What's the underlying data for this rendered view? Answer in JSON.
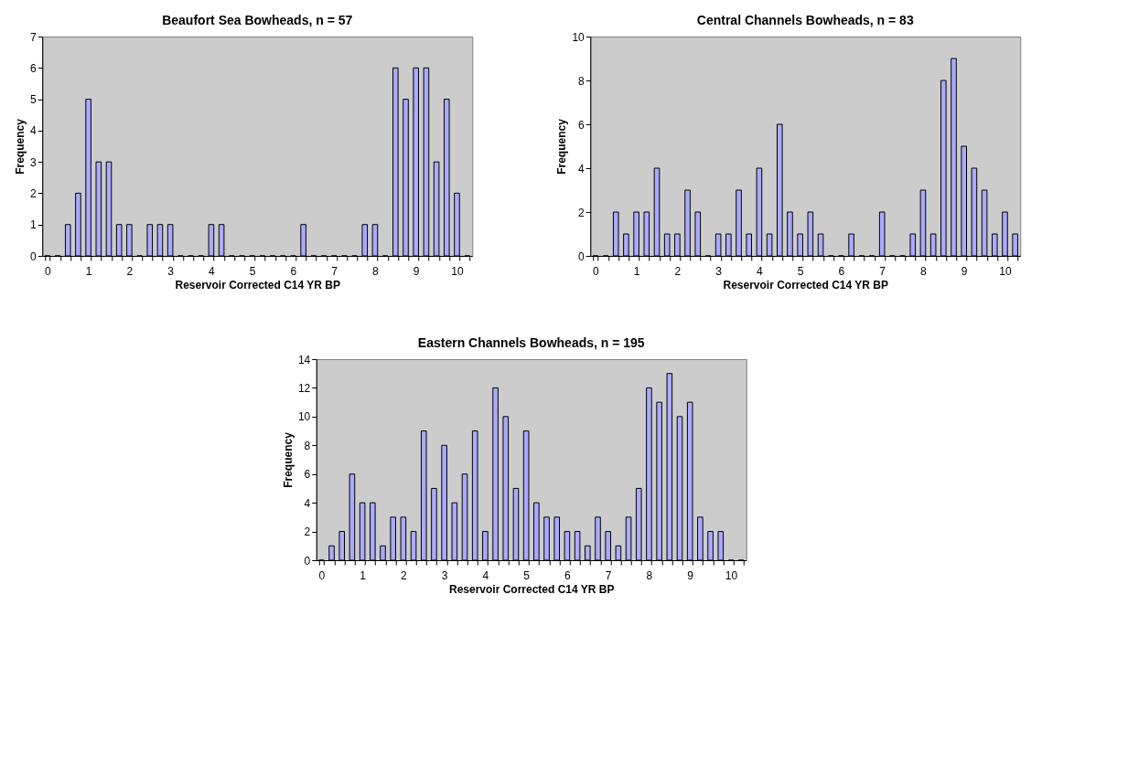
{
  "chart_data": [
    {
      "type": "bar",
      "title": "Beaufort Sea Bowheads, n = 57",
      "xlabel": "Reservoir Corrected C14 YR BP",
      "ylabel": "Frequency",
      "color": "#aaaaff",
      "categories": [
        "0",
        null,
        null,
        null,
        "1",
        null,
        null,
        null,
        "2",
        null,
        null,
        null,
        "3",
        null,
        null,
        null,
        "4",
        null,
        null,
        null,
        "5",
        null,
        null,
        null,
        "6",
        null,
        null,
        null,
        "7",
        null,
        null,
        null,
        "8",
        null,
        null,
        null,
        "9",
        null,
        null,
        null,
        "10",
        null
      ],
      "values": [
        0,
        0,
        1,
        2,
        5,
        3,
        3,
        1,
        1,
        0,
        1,
        1,
        1,
        0,
        0,
        0,
        1,
        1,
        0,
        0,
        0,
        0,
        0,
        0,
        0,
        1,
        0,
        0,
        0,
        0,
        0,
        1,
        1,
        0,
        6,
        5,
        6,
        6,
        3,
        5,
        2,
        0
      ],
      "ylim": [
        0,
        7
      ],
      "yticks": [
        0,
        1,
        2,
        3,
        4,
        5,
        6,
        7
      ]
    },
    {
      "type": "bar",
      "title": "Central Channels Bowheads, n = 83",
      "xlabel": "Reservoir Corrected C14 YR BP",
      "ylabel": "Frequency",
      "color": "#aaaaff",
      "categories": [
        "0",
        null,
        null,
        null,
        "1",
        null,
        null,
        null,
        "2",
        null,
        null,
        null,
        "3",
        null,
        null,
        null,
        "4",
        null,
        null,
        null,
        "5",
        null,
        null,
        null,
        "6",
        null,
        null,
        null,
        "7",
        null,
        null,
        null,
        "8",
        null,
        null,
        null,
        "9",
        null,
        null,
        null,
        "10",
        null
      ],
      "values": [
        0,
        0,
        2,
        1,
        2,
        2,
        4,
        1,
        1,
        3,
        2,
        0,
        1,
        1,
        3,
        1,
        4,
        1,
        6,
        2,
        1,
        2,
        1,
        0,
        0,
        1,
        0,
        0,
        2,
        0,
        0,
        1,
        3,
        1,
        8,
        9,
        5,
        4,
        3,
        1,
        2,
        1
      ],
      "ylim": [
        0,
        10
      ],
      "yticks": [
        0,
        2,
        4,
        6,
        8,
        10
      ]
    },
    {
      "type": "bar",
      "title": "Eastern Channels Bowheads, n = 195",
      "xlabel": "Reservoir Corrected C14 YR BP",
      "ylabel": "Frequency",
      "color": "#aaaaff",
      "categories": [
        "0",
        null,
        null,
        null,
        "1",
        null,
        null,
        null,
        "2",
        null,
        null,
        null,
        "3",
        null,
        null,
        null,
        "4",
        null,
        null,
        null,
        "5",
        null,
        null,
        null,
        "6",
        null,
        null,
        null,
        "7",
        null,
        null,
        null,
        "8",
        null,
        null,
        null,
        "9",
        null,
        null,
        null,
        "10",
        null
      ],
      "values": [
        0,
        1,
        2,
        6,
        4,
        4,
        1,
        3,
        3,
        2,
        9,
        5,
        8,
        4,
        6,
        9,
        2,
        12,
        10,
        5,
        9,
        4,
        3,
        3,
        2,
        2,
        1,
        3,
        2,
        1,
        3,
        5,
        12,
        11,
        13,
        10,
        11,
        3,
        2,
        2,
        0,
        0
      ],
      "ylim": [
        0,
        14
      ],
      "yticks": [
        0,
        2,
        4,
        6,
        8,
        10,
        12,
        14
      ]
    }
  ]
}
